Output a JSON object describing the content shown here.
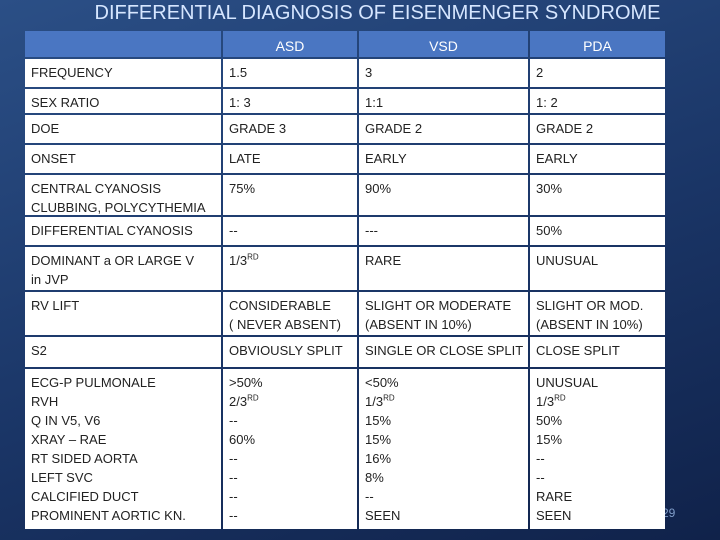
{
  "title": "DIFFERENTIAL DIAGNOSIS OF EISENMENGER SYNDROME",
  "table": {
    "columns": [
      "ASD",
      "VSD",
      "PDA"
    ],
    "rows": [
      {
        "label": [
          "FREQUENCY"
        ],
        "cells": [
          [
            "1.5"
          ],
          [
            "3"
          ],
          [
            "2"
          ]
        ]
      },
      {
        "label": [
          "SEX RATIO"
        ],
        "cells": [
          [
            "1: 3"
          ],
          [
            "1:1"
          ],
          [
            "1: 2"
          ]
        ]
      },
      {
        "label": [
          "DOE"
        ],
        "cells": [
          [
            "GRADE 3"
          ],
          [
            "GRADE 2"
          ],
          [
            "GRADE 2"
          ]
        ]
      },
      {
        "label": [
          "ONSET"
        ],
        "cells": [
          [
            "LATE"
          ],
          [
            "EARLY"
          ],
          [
            "EARLY"
          ]
        ]
      },
      {
        "label": [
          "CENTRAL CYANOSIS",
          "CLUBBING, POLYCYTHEMIA"
        ],
        "cells": [
          [
            "75%"
          ],
          [
            "90%"
          ],
          [
            "30%"
          ]
        ]
      },
      {
        "label": [
          "DIFFERENTIAL CYANOSIS"
        ],
        "cells": [
          [
            "--"
          ],
          [
            "---"
          ],
          [
            "50%"
          ]
        ]
      },
      {
        "label": [
          "DOMINANT a OR LARGE V",
          "in JVP"
        ],
        "cells": [
          [
            [
              "1/3",
              "RD"
            ]
          ],
          [
            "RARE"
          ],
          [
            "UNUSUAL"
          ]
        ]
      },
      {
        "label": [
          "RV LIFT"
        ],
        "cells": [
          [
            "CONSIDERABLE",
            "( NEVER ABSENT)"
          ],
          [
            "SLIGHT OR MODERATE",
            "(ABSENT IN 10%)"
          ],
          [
            "SLIGHT OR MOD.",
            "(ABSENT IN 10%)"
          ]
        ]
      },
      {
        "label": [
          "S2"
        ],
        "cells": [
          [
            "OBVIOUSLY SPLIT"
          ],
          [
            "SINGLE OR CLOSE SPLIT"
          ],
          [
            "CLOSE SPLIT"
          ]
        ]
      },
      {
        "label": [
          "ECG-P PULMONALE",
          "RVH",
          "Q IN V5, V6",
          "XRAY – RAE",
          "RT SIDED AORTA",
          "LEFT SVC",
          "CALCIFIED DUCT",
          "PROMINENT AORTIC KN."
        ],
        "cells": [
          [
            ">50%",
            [
              "2/3",
              "RD"
            ],
            "--",
            "60%",
            "--",
            "--",
            "--",
            "--"
          ],
          [
            "<50%",
            [
              "1/3",
              "RD"
            ],
            "15%",
            "15%",
            "16%",
            "8%",
            "--",
            "SEEN"
          ],
          [
            "UNUSUAL",
            [
              "1/3",
              "RD"
            ],
            "50%",
            "15%",
            "--",
            "--",
            "RARE",
            "SEEN"
          ]
        ]
      }
    ]
  },
  "page_number": "29"
}
